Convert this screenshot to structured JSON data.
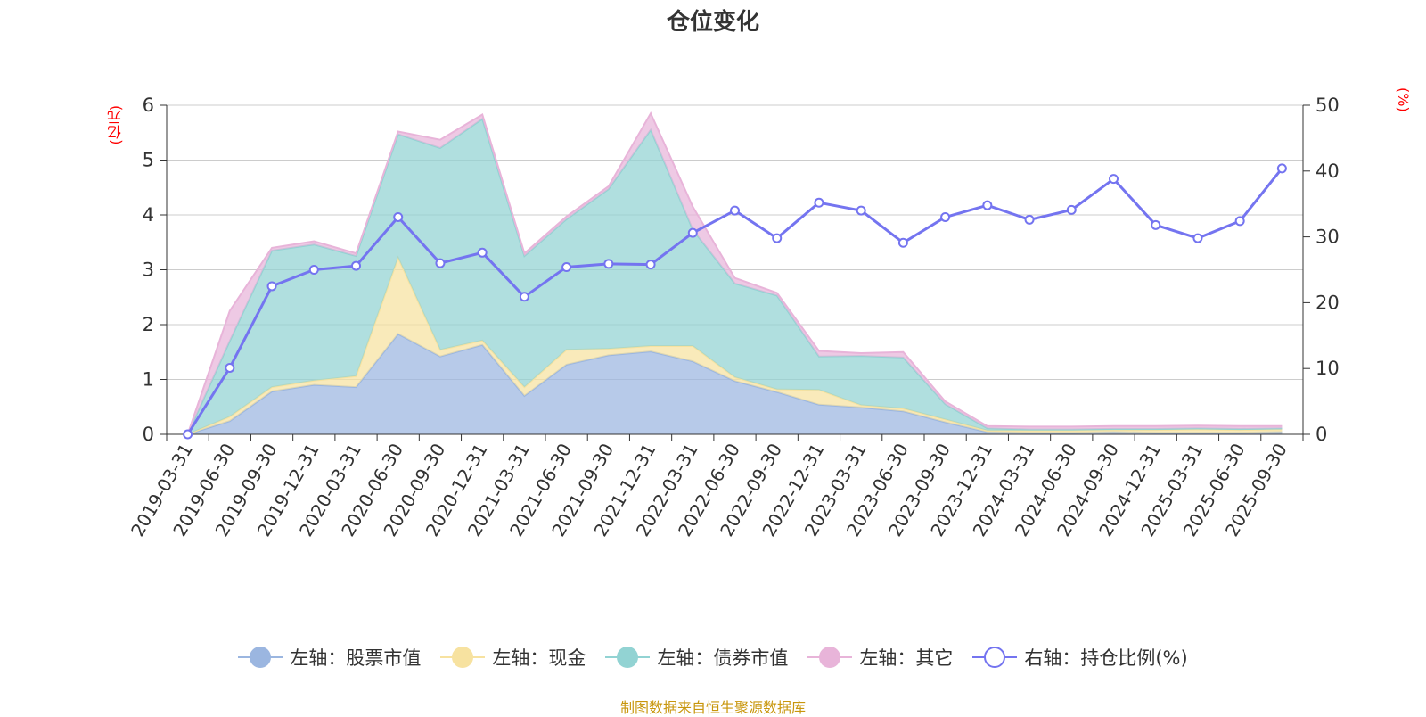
{
  "title": "仓位变化",
  "left_unit": "(亿元)",
  "right_unit": "(%)",
  "source": "制图数据来自恒生聚源数据库",
  "colors": {
    "stock": "#9bb6e0",
    "cash": "#f7e2a0",
    "bond": "#92d3d3",
    "other": "#e8b4d9",
    "ratio": "#7474f0"
  },
  "legend": [
    {
      "label": "左轴：股票市值",
      "key": "stock"
    },
    {
      "label": "左轴：现金",
      "key": "cash"
    },
    {
      "label": "左轴：债券市值",
      "key": "bond"
    },
    {
      "label": "左轴：其它",
      "key": "other"
    },
    {
      "label": "右轴：持仓比例(%)",
      "key": "ratio"
    }
  ],
  "chart_data": {
    "type": "area",
    "title": "仓位变化",
    "categories": [
      "2019-03-31",
      "2019-06-30",
      "2019-09-30",
      "2019-12-31",
      "2020-03-31",
      "2020-06-30",
      "2020-09-30",
      "2020-12-31",
      "2021-03-31",
      "2021-06-30",
      "2021-09-30",
      "2021-12-31",
      "2022-03-31",
      "2022-06-30",
      "2022-09-30",
      "2022-12-31",
      "2023-03-31",
      "2023-06-30",
      "2023-09-30",
      "2023-12-31",
      "2024-03-31",
      "2024-06-30",
      "2024-09-30",
      "2024-12-31",
      "2025-03-31",
      "2025-06-30",
      "2025-09-30"
    ],
    "left_axis": {
      "min": 0,
      "max": 6,
      "ticks": [
        0,
        1,
        2,
        3,
        4,
        5,
        6
      ],
      "unit": "亿元"
    },
    "right_axis": {
      "min": 0,
      "max": 50,
      "ticks": [
        0,
        10,
        20,
        30,
        40,
        50
      ],
      "unit": "%"
    },
    "series": [
      {
        "name": "左轴：股票市值",
        "axis": "left",
        "stack": true,
        "values": [
          0,
          0.24,
          0.78,
          0.9,
          0.86,
          1.83,
          1.42,
          1.63,
          0.7,
          1.27,
          1.44,
          1.51,
          1.33,
          0.97,
          0.77,
          0.54,
          0.49,
          0.42,
          0.22,
          0.04,
          0.03,
          0.03,
          0.04,
          0.03,
          0.03,
          0.03,
          0.04
        ]
      },
      {
        "name": "左轴：现金",
        "axis": "left",
        "stack": true,
        "values": [
          0,
          0.08,
          0.08,
          0.08,
          0.2,
          1.39,
          0.12,
          0.08,
          0.16,
          0.27,
          0.12,
          0.1,
          0.28,
          0.07,
          0.05,
          0.27,
          0.04,
          0.05,
          0.05,
          0.03,
          0.04,
          0.04,
          0.04,
          0.05,
          0.06,
          0.05,
          0.05
        ]
      },
      {
        "name": "左轴：债券市值",
        "axis": "left",
        "stack": true,
        "values": [
          0,
          1.38,
          2.49,
          2.48,
          2.19,
          2.25,
          3.68,
          4.04,
          2.39,
          2.38,
          2.91,
          3.94,
          2.12,
          1.71,
          1.71,
          0.61,
          0.9,
          0.93,
          0.28,
          0.04,
          0.02,
          0.02,
          0.02,
          0.02,
          0.02,
          0.02,
          0.02
        ]
      },
      {
        "name": "左轴：其它",
        "axis": "left",
        "stack": true,
        "values": [
          0,
          0.55,
          0.05,
          0.06,
          0.05,
          0.05,
          0.15,
          0.08,
          0.05,
          0.05,
          0.05,
          0.3,
          0.42,
          0.1,
          0.05,
          0.1,
          0.05,
          0.1,
          0.05,
          0.04,
          0.05,
          0.05,
          0.05,
          0.05,
          0.05,
          0.05,
          0.04
        ]
      },
      {
        "name": "右轴：持仓比例(%)",
        "axis": "right",
        "type": "line",
        "values": [
          0,
          10.1,
          22.5,
          25,
          25.6,
          33,
          26,
          27.6,
          20.9,
          25.4,
          25.9,
          25.8,
          30.6,
          34,
          29.8,
          35.2,
          34,
          29.1,
          33,
          34.8,
          32.6,
          34.1,
          38.8,
          31.8,
          29.8,
          32.4,
          40.4
        ]
      }
    ]
  }
}
